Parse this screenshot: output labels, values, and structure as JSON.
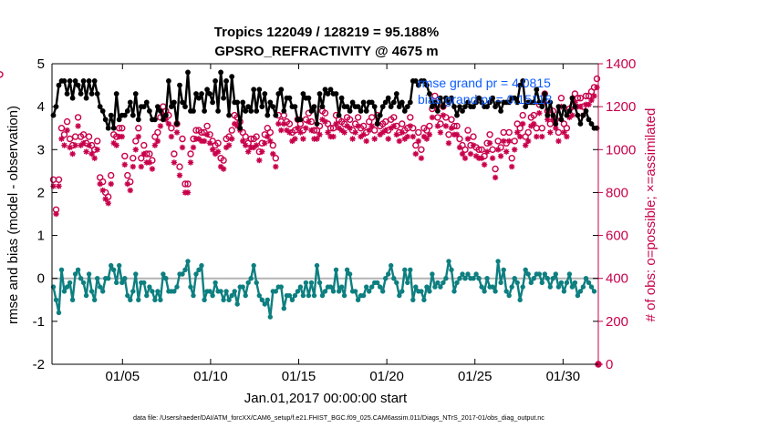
{
  "chart_data": {
    "type": "line",
    "title_line1": "Tropics 122049 / 128219 = 95.188%",
    "title_line2": "GPSRO_REFRACTIVITY @ 4675 m",
    "xlabel": "Jan.01,2017 00:00:00 start",
    "ylabel_left": "rmse and bias (model - observation)",
    "ylabel_right": "# of obs: o=possible; ×=assimilated",
    "footer": "data file: /Users/raeder/DAI/ATM_forcXX/CAM6_setup/f.e21.FHIST_BGC.f09_025.CAM6assim.011/Diags_NTrS_2017-01/obs_diag_output.nc",
    "x_range": [
      1.0,
      32.0
    ],
    "x_ticks": [
      5,
      10,
      15,
      20,
      25,
      30
    ],
    "x_tick_labels": [
      "01/05",
      "01/10",
      "01/15",
      "01/20",
      "01/25",
      "01/30"
    ],
    "ylim_left": [
      -2,
      5
    ],
    "y_ticks_left": [
      -2,
      -1,
      0,
      1,
      2,
      3,
      4,
      5
    ],
    "ylim_right": [
      0,
      1400
    ],
    "y_ticks_right": [
      0,
      200,
      400,
      600,
      800,
      1000,
      1200,
      1400
    ],
    "legend": [
      {
        "name": "rmse grand pr = 4.0815",
        "color": "#000000"
      },
      {
        "name": "bias grand pr = 0.15118",
        "color": "#0e7f80"
      }
    ],
    "zero_line": 0,
    "colors": {
      "rmse": "#000000",
      "bias": "#0e7f80",
      "obs": "#c8004b",
      "zero": "#b4b4b4"
    },
    "series": [
      {
        "name": "rmse",
        "values": [
          3.8,
          4.0,
          4.5,
          4.6,
          4.6,
          4.3,
          4.6,
          4.2,
          4.6,
          4.5,
          4.3,
          4.6,
          4.2,
          4.6,
          4.3,
          4.6,
          4.3,
          4.0,
          3.9,
          3.7,
          3.5,
          3.8,
          3.5,
          4.3,
          3.7,
          3.8,
          3.8,
          3.9,
          4.1,
          3.8,
          4.3,
          3.7,
          4.0,
          4.0,
          4.1,
          3.9,
          3.7,
          3.7,
          4.0,
          3.9,
          3.7,
          3.8,
          4.6,
          4.0,
          4.1,
          3.6,
          4.5,
          4.1,
          4.0,
          4.8,
          3.9,
          3.9,
          4.3,
          4.2,
          4.3,
          3.9,
          4.4,
          4.3,
          4.1,
          4.6,
          3.9,
          4.8,
          4.2,
          4.6,
          3.8,
          4.7,
          4.1,
          4.1,
          3.5,
          4.1,
          3.9,
          4.0,
          3.9,
          4.4,
          3.9,
          4.4,
          4.0,
          4.3,
          3.8,
          4.1,
          4.0,
          3.8,
          4.3,
          4.4,
          3.9,
          4.2,
          4.2,
          4.0,
          4.0,
          3.7,
          3.7,
          4.3,
          4.2,
          4.2,
          3.9,
          4.0,
          3.6,
          4.3,
          4.0,
          4.4,
          4.3,
          4.4,
          4.3,
          4.3,
          3.8,
          4.2,
          4.0,
          4.0,
          3.9,
          4.1,
          4.0,
          4.0,
          3.9,
          4.1,
          3.9,
          4.1,
          4.1,
          4.0,
          3.6,
          3.8,
          4.0,
          4.1,
          4.2,
          4.0,
          4.1,
          4.3,
          4.0,
          4.1,
          3.9,
          4.0,
          4.1,
          4.6,
          4.6,
          4.5,
          4.6,
          4.6,
          4.5,
          4.3,
          4.0,
          4.1,
          3.9,
          4.2,
          4.0,
          4.2,
          4.1,
          4.2,
          4.0,
          3.8,
          4.0,
          3.9,
          4.0,
          4.1,
          4.0,
          4.0,
          4.1,
          4.2,
          4.1,
          4.0,
          4.0,
          4.1,
          4.2,
          4.0,
          4.1,
          3.9,
          4.1,
          4.1,
          4.1,
          4.2,
          4.2,
          4.1,
          4.5,
          4.6,
          4.0,
          4.1,
          4.1,
          4.1,
          4.4,
          4.1,
          4.0,
          4.3,
          3.8,
          4.1,
          3.8,
          3.6,
          4.0,
          3.7,
          4.0,
          3.8,
          3.9,
          4.2,
          4.0,
          3.8,
          3.6,
          3.8,
          3.9,
          3.7,
          3.6,
          3.5,
          3.5
        ]
      },
      {
        "name": "bias",
        "values": [
          -0.2,
          -0.5,
          -0.8,
          0.2,
          -0.3,
          -0.2,
          -0.1,
          -0.5,
          0.1,
          0.2,
          0.0,
          -0.1,
          -0.4,
          0.1,
          -0.3,
          -0.5,
          0.0,
          -0.2,
          -0.3,
          0.0,
          0.0,
          0.3,
          0.2,
          -0.1,
          0.3,
          -0.1,
          0.0,
          -0.4,
          -0.5,
          -0.3,
          0.1,
          -0.5,
          -0.1,
          -0.1,
          -0.4,
          -0.2,
          -0.3,
          -0.5,
          -0.3,
          -0.5,
          0.1,
          0.0,
          -0.3,
          -0.3,
          -0.3,
          -0.2,
          0.1,
          0.1,
          0.2,
          0.4,
          -0.2,
          -0.4,
          0.1,
          0.2,
          0.3,
          -0.5,
          -0.3,
          -0.3,
          -0.4,
          -0.1,
          -0.3,
          -0.3,
          -0.5,
          -0.3,
          -0.5,
          -0.4,
          -0.3,
          -0.6,
          -0.2,
          -0.2,
          -0.4,
          -0.1,
          0.0,
          0.3,
          -0.1,
          -0.4,
          -0.5,
          -0.6,
          -0.5,
          -0.9,
          -0.3,
          -0.3,
          -0.2,
          -0.2,
          -0.7,
          -0.4,
          -0.4,
          -0.5,
          -0.4,
          -0.3,
          -0.2,
          -0.4,
          -0.1,
          -0.4,
          -0.1,
          -0.4,
          0.3,
          -0.1,
          -0.4,
          -0.3,
          -0.2,
          -0.2,
          -0.3,
          0.2,
          -0.3,
          -0.2,
          -0.4,
          0.2,
          0.1,
          -0.3,
          -0.3,
          -0.5,
          -0.4,
          -0.4,
          -0.2,
          -0.3,
          -0.2,
          -0.1,
          -0.1,
          -0.2,
          -0.3,
          0.0,
          0.1,
          0.3,
          0.0,
          -0.1,
          -0.4,
          -0.3,
          0.2,
          -0.1,
          0.2,
          -0.5,
          -0.2,
          -0.3,
          -0.3,
          -0.5,
          -0.2,
          -0.3,
          0.1,
          -0.2,
          -0.1,
          -0.2,
          -0.1,
          0.0,
          0.4,
          0.2,
          -0.3,
          -0.1,
          0.0,
          0.1,
          0.0,
          0.1,
          0.0,
          0.0,
          0.1,
          0.0,
          -0.2,
          -0.3,
          0.0,
          -0.2,
          -0.2,
          -0.3,
          0.4,
          -0.1,
          0.2,
          -0.3,
          -0.4,
          -0.2,
          0.0,
          -0.1,
          -0.5,
          -0.2,
          0.2,
          0.1,
          -0.1,
          0.0,
          0.1,
          0.1,
          -0.1,
          0.1,
          0.0,
          -0.2,
          0.0,
          0.1,
          -0.2,
          -0.1,
          -0.3,
          -0.1,
          0.1,
          -0.2,
          -0.1,
          -0.4,
          -0.3,
          -0.2,
          0.0,
          -0.1,
          -0.2,
          -0.3
        ]
      },
      {
        "name": "obs_possible",
        "values": [
          860,
          720,
          860,
          1100,
          1070,
          1130,
          1050,
          1020,
          1060,
          1150,
          1060,
          1070,
          1030,
          1060,
          1020,
          1000,
          1040,
          870,
          850,
          800,
          780,
          880,
          1070,
          1060,
          1100,
          1100,
          970,
          880,
          850,
          960,
          1040,
          1100,
          960,
          1020,
          980,
          980,
          950,
          1060,
          1080,
          1150,
          1200,
          1180,
          1160,
          1100,
          980,
          1120,
          920,
          1050,
          840,
          840,
          980,
          1050,
          1090,
          1090,
          1080,
          1080,
          1110,
          1070,
          1040,
          1020,
          1030,
          960,
          950,
          1050,
          1060,
          1090,
          1160,
          1150,
          1130,
          1080,
          1060,
          1030,
          1050,
          1050,
          1060,
          990,
          1030,
          1070,
          1100,
          1080,
          1020,
          960,
          1160,
          1130,
          1160,
          1130,
          1120,
          1080,
          1090,
          1140,
          1120,
          1090,
          1140,
          1170,
          1130,
          1090,
          1090,
          1110,
          1180,
          1170,
          1120,
          1100,
          1100,
          1160,
          1140,
          1130,
          1120,
          1150,
          1140,
          1090,
          1120,
          1150,
          1100,
          1110,
          1080,
          1130,
          1150,
          1090,
          1160,
          1110,
          1120,
          1130,
          1090,
          1140,
          1150,
          1110,
          1080,
          1120,
          1090,
          1100,
          1150,
          1100,
          1020,
          1080,
          1000,
          1100,
          1090,
          1110,
          1190,
          1250,
          1150,
          1120,
          1200,
          1150,
          1070,
          1140,
          1110,
          1110,
          1050,
          1020,
          1000,
          1090,
          1020,
          1060,
          1010,
          1000,
          1000,
          970,
          1030,
          1070,
          1000,
          910,
          1040,
          1010,
          1080,
          1030,
          1080,
          960,
          1040,
          1120,
          1100,
          1160,
          1060,
          1080,
          1150,
          1160,
          1100,
          1210,
          1100,
          1260,
          1180,
          1120,
          1180,
          1140,
          1080,
          1240,
          1120,
          1100,
          1190,
          1200,
          1260,
          1240,
          1240,
          1200,
          1250,
          1250,
          1270,
          1290,
          1330,
          1350
        ]
      },
      {
        "name": "obs_assimilated",
        "values": [
          830,
          700,
          830,
          1050,
          1020,
          1090,
          1010,
          980,
          1020,
          1110,
          1020,
          1030,
          990,
          1020,
          980,
          960,
          1000,
          840,
          810,
          770,
          750,
          840,
          1030,
          1020,
          1060,
          1060,
          930,
          840,
          810,
          920,
          1000,
          1060,
          920,
          980,
          940,
          940,
          910,
          1020,
          1040,
          1110,
          1160,
          1140,
          1120,
          1060,
          940,
          1080,
          880,
          1010,
          800,
          800,
          940,
          1010,
          1050,
          1050,
          1040,
          1040,
          1070,
          1030,
          1000,
          980,
          990,
          920,
          910,
          1010,
          1020,
          1050,
          1120,
          1110,
          1090,
          1040,
          1020,
          990,
          1010,
          1010,
          1020,
          950,
          990,
          1030,
          1060,
          1040,
          980,
          920,
          1120,
          1090,
          1120,
          1090,
          1080,
          1040,
          1050,
          1100,
          1080,
          1050,
          1100,
          1130,
          1090,
          1050,
          1050,
          1070,
          1140,
          1130,
          1080,
          1060,
          1060,
          1120,
          1100,
          1090,
          1080,
          1110,
          1100,
          1050,
          1080,
          1110,
          1060,
          1070,
          1040,
          1090,
          1110,
          1050,
          1120,
          1070,
          1080,
          1090,
          1050,
          1100,
          1110,
          1070,
          1040,
          1080,
          1050,
          1060,
          1110,
          1060,
          980,
          1040,
          960,
          1060,
          1050,
          1070,
          1150,
          1200,
          1110,
          1080,
          1160,
          1110,
          1030,
          1100,
          1070,
          1070,
          1010,
          980,
          960,
          1050,
          980,
          1020,
          970,
          960,
          960,
          930,
          990,
          1030,
          960,
          870,
          1000,
          970,
          1040,
          990,
          1040,
          920,
          1000,
          1080,
          1060,
          1120,
          1020,
          1040,
          1110,
          1120,
          1060,
          1170,
          1060,
          1220,
          1140,
          1080,
          1140,
          1100,
          1040,
          1200,
          1080,
          1060,
          1150,
          1160,
          1220,
          1200,
          1200,
          1160,
          1210,
          1210,
          1230,
          1250,
          1290,
          1310
        ]
      }
    ]
  }
}
